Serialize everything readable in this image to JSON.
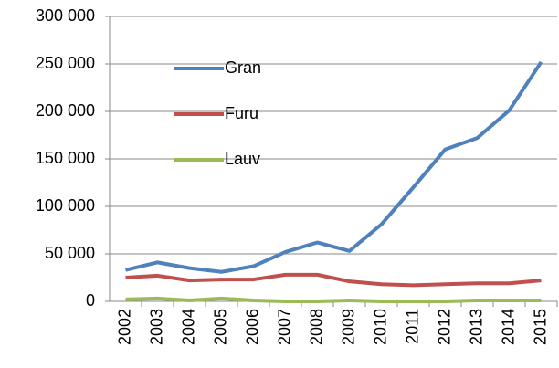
{
  "chart_data": {
    "type": "line",
    "categories": [
      "2002",
      "2003",
      "2004",
      "2005",
      "2006",
      "2007",
      "2008",
      "2009",
      "2010",
      "2011",
      "2012",
      "2013",
      "2014",
      "2015"
    ],
    "series": [
      {
        "name": "Gran",
        "color": "#4f81bd",
        "values": [
          33000,
          41000,
          35000,
          31000,
          37000,
          52000,
          62000,
          53000,
          81000,
          120000,
          160000,
          172000,
          201000,
          252000
        ]
      },
      {
        "name": "Furu",
        "color": "#c0504d",
        "values": [
          25000,
          27000,
          22000,
          23000,
          23000,
          28000,
          28000,
          21000,
          18000,
          17000,
          18000,
          19000,
          19000,
          22000
        ]
      },
      {
        "name": "Lauv",
        "color": "#9bbb59",
        "values": [
          2000,
          3000,
          1000,
          3000,
          1000,
          0,
          0,
          1000,
          0,
          0,
          0,
          1000,
          1000,
          1000
        ]
      }
    ],
    "ylim": [
      0,
      300000
    ],
    "yticks": [
      0,
      {
        "value": 50000,
        "label": "50 000"
      },
      {
        "value": 100000,
        "label": "100 000"
      },
      {
        "value": 150000,
        "label": "150 000"
      },
      {
        "value": 200000,
        "label": "200 000"
      },
      {
        "value": 250000,
        "label": "250 000"
      },
      {
        "value": 300000,
        "label": "300 000"
      }
    ],
    "grid": true
  }
}
